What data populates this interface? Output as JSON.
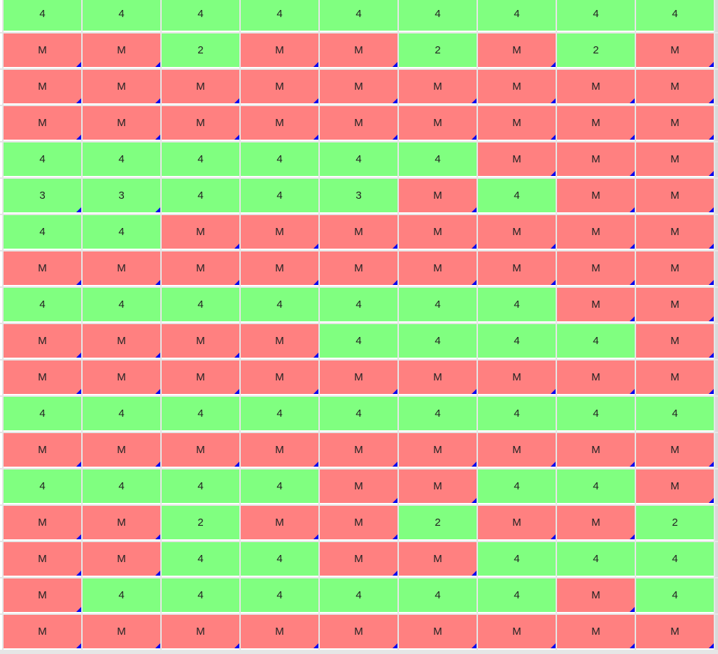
{
  "grid": {
    "colors": {
      "green": "#80ff80",
      "red": "#ff8080",
      "marker": "#0000ee"
    },
    "rows": [
      [
        {
          "value": "4",
          "status": "green",
          "flag": false
        },
        {
          "value": "4",
          "status": "green",
          "flag": false
        },
        {
          "value": "4",
          "status": "green",
          "flag": false
        },
        {
          "value": "4",
          "status": "green",
          "flag": false
        },
        {
          "value": "4",
          "status": "green",
          "flag": false
        },
        {
          "value": "4",
          "status": "green",
          "flag": false
        },
        {
          "value": "4",
          "status": "green",
          "flag": false
        },
        {
          "value": "4",
          "status": "green",
          "flag": false
        },
        {
          "value": "4",
          "status": "green",
          "flag": false
        }
      ],
      [
        {
          "value": "M",
          "status": "red",
          "flag": true
        },
        {
          "value": "M",
          "status": "red",
          "flag": true
        },
        {
          "value": "2",
          "status": "green",
          "flag": false
        },
        {
          "value": "M",
          "status": "red",
          "flag": true
        },
        {
          "value": "M",
          "status": "red",
          "flag": true
        },
        {
          "value": "2",
          "status": "green",
          "flag": false
        },
        {
          "value": "M",
          "status": "red",
          "flag": true
        },
        {
          "value": "2",
          "status": "green",
          "flag": false
        },
        {
          "value": "M",
          "status": "red",
          "flag": true
        }
      ],
      [
        {
          "value": "M",
          "status": "red",
          "flag": true
        },
        {
          "value": "M",
          "status": "red",
          "flag": true
        },
        {
          "value": "M",
          "status": "red",
          "flag": true
        },
        {
          "value": "M",
          "status": "red",
          "flag": true
        },
        {
          "value": "M",
          "status": "red",
          "flag": true
        },
        {
          "value": "M",
          "status": "red",
          "flag": true
        },
        {
          "value": "M",
          "status": "red",
          "flag": true
        },
        {
          "value": "M",
          "status": "red",
          "flag": true
        },
        {
          "value": "M",
          "status": "red",
          "flag": true
        }
      ],
      [
        {
          "value": "M",
          "status": "red",
          "flag": true
        },
        {
          "value": "M",
          "status": "red",
          "flag": true
        },
        {
          "value": "M",
          "status": "red",
          "flag": true
        },
        {
          "value": "M",
          "status": "red",
          "flag": true
        },
        {
          "value": "M",
          "status": "red",
          "flag": true
        },
        {
          "value": "M",
          "status": "red",
          "flag": true
        },
        {
          "value": "M",
          "status": "red",
          "flag": true
        },
        {
          "value": "M",
          "status": "red",
          "flag": true
        },
        {
          "value": "M",
          "status": "red",
          "flag": true
        }
      ],
      [
        {
          "value": "4",
          "status": "green",
          "flag": false
        },
        {
          "value": "4",
          "status": "green",
          "flag": false
        },
        {
          "value": "4",
          "status": "green",
          "flag": false
        },
        {
          "value": "4",
          "status": "green",
          "flag": false
        },
        {
          "value": "4",
          "status": "green",
          "flag": false
        },
        {
          "value": "4",
          "status": "green",
          "flag": false
        },
        {
          "value": "M",
          "status": "red",
          "flag": true
        },
        {
          "value": "M",
          "status": "red",
          "flag": true
        },
        {
          "value": "M",
          "status": "red",
          "flag": true
        }
      ],
      [
        {
          "value": "3",
          "status": "green",
          "flag": true
        },
        {
          "value": "3",
          "status": "green",
          "flag": true
        },
        {
          "value": "4",
          "status": "green",
          "flag": false
        },
        {
          "value": "4",
          "status": "green",
          "flag": false
        },
        {
          "value": "3",
          "status": "green",
          "flag": false
        },
        {
          "value": "M",
          "status": "red",
          "flag": true
        },
        {
          "value": "4",
          "status": "green",
          "flag": false
        },
        {
          "value": "M",
          "status": "red",
          "flag": true
        },
        {
          "value": "M",
          "status": "red",
          "flag": true
        }
      ],
      [
        {
          "value": "4",
          "status": "green",
          "flag": false
        },
        {
          "value": "4",
          "status": "green",
          "flag": false
        },
        {
          "value": "M",
          "status": "red",
          "flag": true
        },
        {
          "value": "M",
          "status": "red",
          "flag": true
        },
        {
          "value": "M",
          "status": "red",
          "flag": true
        },
        {
          "value": "M",
          "status": "red",
          "flag": true
        },
        {
          "value": "M",
          "status": "red",
          "flag": true
        },
        {
          "value": "M",
          "status": "red",
          "flag": true
        },
        {
          "value": "M",
          "status": "red",
          "flag": true
        }
      ],
      [
        {
          "value": "M",
          "status": "red",
          "flag": true
        },
        {
          "value": "M",
          "status": "red",
          "flag": true
        },
        {
          "value": "M",
          "status": "red",
          "flag": true
        },
        {
          "value": "M",
          "status": "red",
          "flag": true
        },
        {
          "value": "M",
          "status": "red",
          "flag": true
        },
        {
          "value": "M",
          "status": "red",
          "flag": true
        },
        {
          "value": "M",
          "status": "red",
          "flag": true
        },
        {
          "value": "M",
          "status": "red",
          "flag": true
        },
        {
          "value": "M",
          "status": "red",
          "flag": true
        }
      ],
      [
        {
          "value": "4",
          "status": "green",
          "flag": false
        },
        {
          "value": "4",
          "status": "green",
          "flag": false
        },
        {
          "value": "4",
          "status": "green",
          "flag": false
        },
        {
          "value": "4",
          "status": "green",
          "flag": false
        },
        {
          "value": "4",
          "status": "green",
          "flag": false
        },
        {
          "value": "4",
          "status": "green",
          "flag": false
        },
        {
          "value": "4",
          "status": "green",
          "flag": false
        },
        {
          "value": "M",
          "status": "red",
          "flag": true
        },
        {
          "value": "M",
          "status": "red",
          "flag": true
        }
      ],
      [
        {
          "value": "M",
          "status": "red",
          "flag": true
        },
        {
          "value": "M",
          "status": "red",
          "flag": true
        },
        {
          "value": "M",
          "status": "red",
          "flag": true
        },
        {
          "value": "M",
          "status": "red",
          "flag": true
        },
        {
          "value": "4",
          "status": "green",
          "flag": false
        },
        {
          "value": "4",
          "status": "green",
          "flag": false
        },
        {
          "value": "4",
          "status": "green",
          "flag": false
        },
        {
          "value": "4",
          "status": "green",
          "flag": false
        },
        {
          "value": "M",
          "status": "red",
          "flag": true
        }
      ],
      [
        {
          "value": "M",
          "status": "red",
          "flag": true
        },
        {
          "value": "M",
          "status": "red",
          "flag": true
        },
        {
          "value": "M",
          "status": "red",
          "flag": true
        },
        {
          "value": "M",
          "status": "red",
          "flag": true
        },
        {
          "value": "M",
          "status": "red",
          "flag": true
        },
        {
          "value": "M",
          "status": "red",
          "flag": true
        },
        {
          "value": "M",
          "status": "red",
          "flag": true
        },
        {
          "value": "M",
          "status": "red",
          "flag": true
        },
        {
          "value": "M",
          "status": "red",
          "flag": true
        }
      ],
      [
        {
          "value": "4",
          "status": "green",
          "flag": false
        },
        {
          "value": "4",
          "status": "green",
          "flag": false
        },
        {
          "value": "4",
          "status": "green",
          "flag": false
        },
        {
          "value": "4",
          "status": "green",
          "flag": false
        },
        {
          "value": "4",
          "status": "green",
          "flag": false
        },
        {
          "value": "4",
          "status": "green",
          "flag": false
        },
        {
          "value": "4",
          "status": "green",
          "flag": false
        },
        {
          "value": "4",
          "status": "green",
          "flag": false
        },
        {
          "value": "4",
          "status": "green",
          "flag": false
        }
      ],
      [
        {
          "value": "M",
          "status": "red",
          "flag": true
        },
        {
          "value": "M",
          "status": "red",
          "flag": true
        },
        {
          "value": "M",
          "status": "red",
          "flag": true
        },
        {
          "value": "M",
          "status": "red",
          "flag": true
        },
        {
          "value": "M",
          "status": "red",
          "flag": true
        },
        {
          "value": "M",
          "status": "red",
          "flag": true
        },
        {
          "value": "M",
          "status": "red",
          "flag": true
        },
        {
          "value": "M",
          "status": "red",
          "flag": true
        },
        {
          "value": "M",
          "status": "red",
          "flag": true
        }
      ],
      [
        {
          "value": "4",
          "status": "green",
          "flag": false
        },
        {
          "value": "4",
          "status": "green",
          "flag": false
        },
        {
          "value": "4",
          "status": "green",
          "flag": false
        },
        {
          "value": "4",
          "status": "green",
          "flag": false
        },
        {
          "value": "M",
          "status": "red",
          "flag": true
        },
        {
          "value": "M",
          "status": "red",
          "flag": true
        },
        {
          "value": "4",
          "status": "green",
          "flag": false
        },
        {
          "value": "4",
          "status": "green",
          "flag": false
        },
        {
          "value": "M",
          "status": "red",
          "flag": true
        }
      ],
      [
        {
          "value": "M",
          "status": "red",
          "flag": true
        },
        {
          "value": "M",
          "status": "red",
          "flag": true
        },
        {
          "value": "2",
          "status": "green",
          "flag": false
        },
        {
          "value": "M",
          "status": "red",
          "flag": true
        },
        {
          "value": "M",
          "status": "red",
          "flag": true
        },
        {
          "value": "2",
          "status": "green",
          "flag": false
        },
        {
          "value": "M",
          "status": "red",
          "flag": true
        },
        {
          "value": "M",
          "status": "red",
          "flag": true
        },
        {
          "value": "2",
          "status": "green",
          "flag": false
        }
      ],
      [
        {
          "value": "M",
          "status": "red",
          "flag": true
        },
        {
          "value": "M",
          "status": "red",
          "flag": true
        },
        {
          "value": "4",
          "status": "green",
          "flag": false
        },
        {
          "value": "4",
          "status": "green",
          "flag": false
        },
        {
          "value": "M",
          "status": "red",
          "flag": true
        },
        {
          "value": "M",
          "status": "red",
          "flag": true
        },
        {
          "value": "4",
          "status": "green",
          "flag": false
        },
        {
          "value": "4",
          "status": "green",
          "flag": false
        },
        {
          "value": "4",
          "status": "green",
          "flag": false
        }
      ],
      [
        {
          "value": "M",
          "status": "red",
          "flag": true
        },
        {
          "value": "4",
          "status": "green",
          "flag": false
        },
        {
          "value": "4",
          "status": "green",
          "flag": false
        },
        {
          "value": "4",
          "status": "green",
          "flag": false
        },
        {
          "value": "4",
          "status": "green",
          "flag": false
        },
        {
          "value": "4",
          "status": "green",
          "flag": false
        },
        {
          "value": "4",
          "status": "green",
          "flag": false
        },
        {
          "value": "M",
          "status": "red",
          "flag": true
        },
        {
          "value": "4",
          "status": "green",
          "flag": false
        }
      ],
      [
        {
          "value": "M",
          "status": "red",
          "flag": true
        },
        {
          "value": "M",
          "status": "red",
          "flag": true
        },
        {
          "value": "M",
          "status": "red",
          "flag": true
        },
        {
          "value": "M",
          "status": "red",
          "flag": true
        },
        {
          "value": "M",
          "status": "red",
          "flag": true
        },
        {
          "value": "M",
          "status": "red",
          "flag": true
        },
        {
          "value": "M",
          "status": "red",
          "flag": true
        },
        {
          "value": "M",
          "status": "red",
          "flag": true
        },
        {
          "value": "M",
          "status": "red",
          "flag": true
        }
      ]
    ]
  }
}
